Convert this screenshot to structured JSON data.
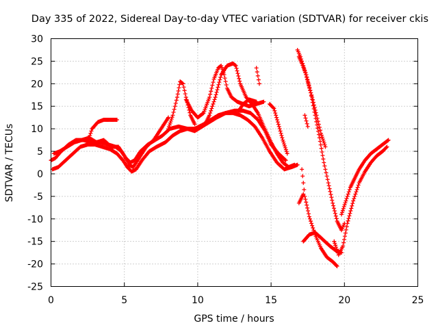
{
  "chart_data": {
    "type": "scatter",
    "title": "Day 335 of 2022, Sidereal Day-to-day VTEC variation (SDTVAR) for receiver ckis",
    "xlabel": "GPS time / hours",
    "ylabel": "SDTVAR / TECUs",
    "xlim": [
      0,
      25
    ],
    "ylim": [
      -25,
      30
    ],
    "xticks": [
      0,
      5,
      10,
      15,
      20,
      25
    ],
    "yticks": [
      -25,
      -20,
      -15,
      -10,
      -5,
      0,
      5,
      10,
      15,
      20,
      25,
      30
    ],
    "xtick_labels": [
      "0",
      "5",
      "10",
      "15",
      "20",
      "25"
    ],
    "ytick_labels": [
      "-25",
      "-20",
      "-15",
      "-10",
      "-5",
      "0",
      "5",
      "10",
      "15",
      "20",
      "25",
      "30"
    ],
    "grid": true,
    "legend": "none",
    "marker": "plus",
    "color": "#ff0000",
    "series": [
      {
        "x": [
          0.0,
          0.3,
          0.7,
          1.2,
          1.7,
          2.2,
          2.8,
          3.4,
          3.9,
          4.4,
          4.8,
          5.1,
          5.4,
          5.7,
          6.1,
          6.6,
          7.1,
          7.6,
          8.1,
          8.7,
          9.3,
          9.8,
          10.3,
          10.8,
          11.3,
          11.9,
          12.5,
          13.1,
          13.6,
          14.1,
          14.6,
          15.0,
          15.5,
          16.0
        ],
        "y": [
          3.0,
          3.5,
          5.0,
          6.5,
          7.5,
          7.5,
          7.0,
          7.0,
          6.5,
          6.0,
          5.0,
          3.5,
          2.5,
          3.0,
          5.0,
          6.5,
          7.5,
          8.5,
          10.0,
          10.5,
          10.0,
          9.5,
          10.5,
          11.5,
          12.5,
          13.5,
          14.0,
          14.0,
          13.5,
          12.0,
          9.5,
          6.5,
          4.5,
          3.0
        ]
      },
      {
        "x": [
          0.1,
          0.5,
          1.0,
          1.5,
          2.0,
          2.5,
          3.0,
          3.5,
          4.0,
          4.5,
          4.9,
          5.2,
          5.5,
          5.8,
          6.2,
          6.7,
          7.2,
          7.8,
          8.3,
          8.8,
          9.3,
          9.8,
          10.4,
          10.9,
          11.4,
          11.9,
          12.4,
          12.9,
          13.4,
          13.9,
          14.4,
          14.9,
          15.4,
          15.9,
          16.4,
          16.8
        ],
        "y": [
          1.0,
          1.5,
          3.0,
          4.5,
          6.0,
          6.5,
          6.5,
          6.0,
          5.5,
          4.5,
          3.0,
          1.5,
          0.5,
          1.0,
          3.0,
          5.0,
          6.0,
          7.0,
          8.5,
          9.5,
          10.0,
          10.0,
          11.0,
          12.0,
          13.0,
          13.5,
          13.5,
          13.0,
          12.0,
          10.5,
          8.0,
          5.0,
          2.5,
          1.0,
          1.5,
          2.0
        ]
      },
      {
        "x": [
          0.2,
          0.6,
          1.1,
          1.6,
          2.1,
          2.6,
          3.1,
          3.6,
          4.1,
          4.6,
          5.0,
          5.3,
          5.6,
          6.0,
          6.5,
          7.0,
          7.5,
          8.0
        ],
        "y": [
          4.5,
          5.0,
          6.0,
          7.0,
          7.5,
          8.0,
          7.0,
          7.5,
          6.0,
          6.0,
          4.0,
          2.0,
          1.5,
          3.5,
          6.0,
          7.5,
          10.0,
          12.5
        ]
      },
      {
        "x": [
          2.5,
          2.8,
          3.2,
          3.6,
          4.0,
          4.5
        ],
        "y": [
          7.0,
          10.0,
          11.5,
          12.0,
          12.0,
          12.0
        ]
      },
      {
        "x": [
          8.0,
          8.3,
          8.6,
          8.8,
          9.0,
          9.2,
          9.5,
          9.8
        ],
        "y": [
          10.0,
          13.0,
          17.0,
          20.5,
          20.0,
          17.0,
          13.0,
          11.0
        ]
      },
      {
        "x": [
          9.2,
          9.6,
          10.0,
          10.4,
          10.8,
          11.1,
          11.4,
          11.6,
          11.8,
          12.0,
          12.3,
          12.7,
          13.1,
          13.5,
          14.0,
          14.5
        ],
        "y": [
          16.5,
          14.0,
          12.5,
          13.5,
          17.0,
          21.0,
          23.5,
          24.0,
          22.0,
          19.0,
          17.0,
          16.0,
          15.5,
          15.0,
          15.5,
          16.0
        ]
      },
      {
        "x": [
          10.5,
          10.8,
          11.2,
          11.6,
          12.0,
          12.4,
          12.6,
          12.9,
          13.3,
          13.7,
          14.1,
          14.5,
          15.0,
          15.4,
          15.8,
          16.2,
          16.6
        ],
        "y": [
          11.0,
          13.0,
          17.0,
          22.0,
          24.0,
          24.5,
          24.0,
          20.0,
          17.0,
          15.5,
          13.5,
          10.5,
          7.0,
          4.5,
          2.5,
          1.5,
          2.0
        ]
      },
      {
        "x": [
          12.8,
          13.1,
          13.5,
          14.0
        ],
        "y": [
          14.0,
          15.5,
          16.5,
          16.0
        ]
      },
      {
        "x": [
          14.0,
          14.2
        ],
        "y": [
          23.5,
          20.0
        ]
      },
      {
        "x": [
          14.9,
          15.2,
          15.5,
          15.8,
          16.1
        ],
        "y": [
          15.5,
          14.5,
          11.0,
          7.5,
          4.5
        ]
      },
      {
        "x": [
          16.8,
          17.0,
          17.2,
          17.5,
          17.8,
          18.1,
          18.4,
          18.7
        ],
        "y": [
          27.5,
          26.0,
          24.0,
          20.5,
          17.0,
          13.0,
          9.0,
          6.0
        ]
      },
      {
        "x": [
          16.9,
          17.1,
          17.4,
          17.7,
          18.0,
          18.3,
          18.6,
          18.9,
          19.2,
          19.5,
          19.8,
          20.0
        ],
        "y": [
          26.0,
          24.5,
          22.0,
          18.0,
          13.0,
          8.0,
          2.5,
          -2.0,
          -6.5,
          -10.5,
          -12.5,
          -11.0
        ]
      },
      {
        "x": [
          17.1,
          17.3,
          17.6,
          18.0,
          18.4,
          18.8,
          19.2,
          19.5
        ],
        "y": [
          1.0,
          -5.0,
          -9.5,
          -13.5,
          -16.5,
          -18.5,
          -19.5,
          -20.5
        ]
      },
      {
        "x": [
          19.3,
          19.6,
          19.9,
          20.2,
          20.6,
          21.0,
          21.4,
          21.8,
          22.2,
          22.6,
          22.9
        ],
        "y": [
          -15.0,
          -18.0,
          -16.0,
          -11.0,
          -6.0,
          -2.0,
          0.5,
          2.5,
          4.0,
          5.0,
          6.0
        ]
      },
      {
        "x": [
          19.8,
          20.1,
          20.4,
          20.7,
          21.0,
          21.4,
          21.8,
          22.2,
          22.6,
          23.0
        ],
        "y": [
          -9.0,
          -6.0,
          -3.0,
          -1.0,
          1.0,
          3.0,
          4.5,
          5.5,
          6.5,
          7.5
        ]
      },
      {
        "x": [
          17.2,
          17.6,
          18.0,
          18.5,
          19.0,
          19.4,
          19.8
        ],
        "y": [
          -15.0,
          -13.5,
          -13.0,
          -14.5,
          -16.0,
          -17.0,
          -17.5
        ]
      },
      {
        "x": [
          17.3,
          17.5
        ],
        "y": [
          13.0,
          10.5
        ]
      },
      {
        "x": [
          16.9,
          17.2
        ],
        "y": [
          -6.5,
          -4.5
        ]
      }
    ]
  }
}
